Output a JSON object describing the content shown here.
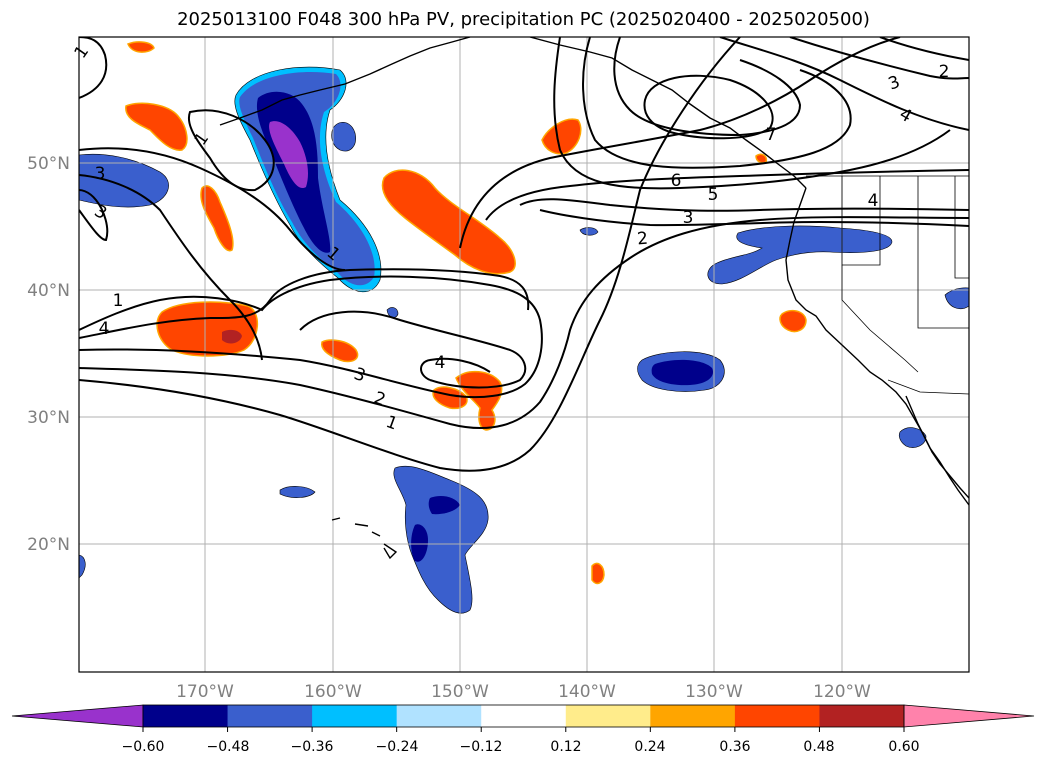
{
  "chart_data": {
    "type": "contour-map",
    "title": "2025013100 F048 300 hPa PV, precipitation PC (2025020400 - 2025020500)",
    "lat_ticks": [
      "20°N",
      "30°N",
      "40°N",
      "50°N"
    ],
    "lon_ticks": [
      "170°W",
      "160°W",
      "150°W",
      "140°W",
      "130°W",
      "120°W"
    ],
    "grid": true,
    "colorbar": {
      "position": "bottom",
      "extend": "both",
      "levels": [
        -0.6,
        -0.48,
        -0.36,
        -0.24,
        -0.12,
        0.12,
        0.24,
        0.36,
        0.48,
        0.6
      ],
      "tick_labels": [
        "−0.60",
        "−0.48",
        "−0.36",
        "−0.24",
        "−0.12",
        "0.12",
        "0.24",
        "0.36",
        "0.48",
        "0.60"
      ],
      "colors": [
        "#9932cc",
        "#00008b",
        "#3a5fcd",
        "#00bfff",
        "#b0e2ff",
        "#ffffff",
        "#ffec8b",
        "#ffa500",
        "#ff4500",
        "#b22222",
        "#ff82ab"
      ]
    },
    "contour_labels": [
      "1",
      "1",
      "1",
      "3",
      "3",
      "4",
      "1",
      "4",
      "3",
      "2",
      "1",
      "2",
      "3",
      "4",
      "5",
      "6",
      "7",
      "3",
      "2",
      "4"
    ]
  }
}
